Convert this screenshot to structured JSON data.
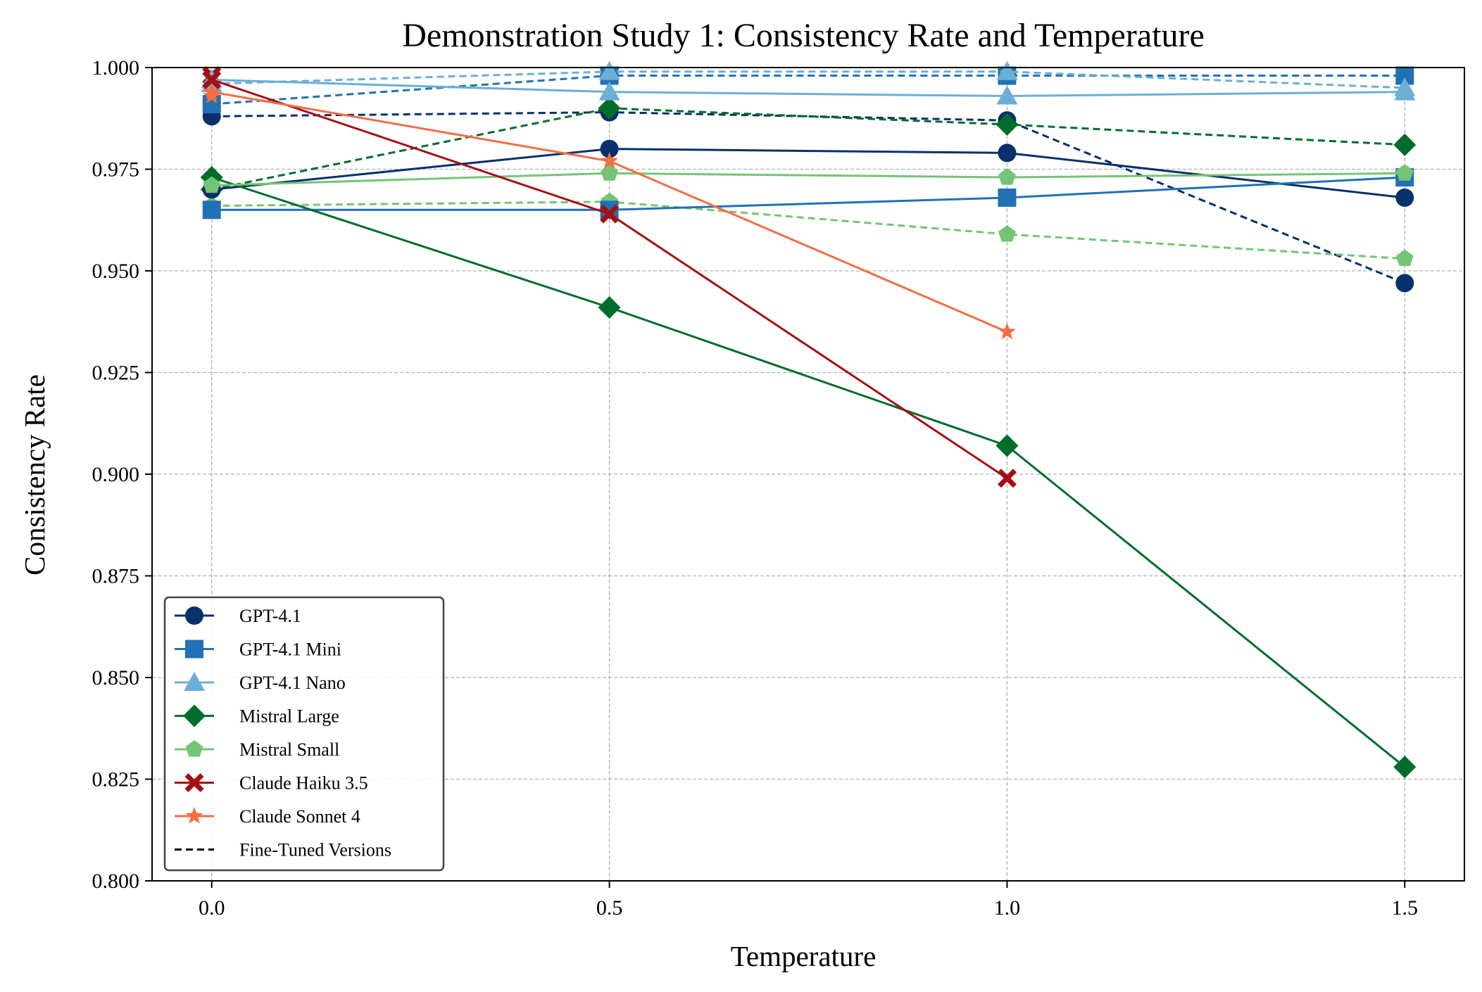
{
  "chart_data": {
    "type": "line",
    "title": "Demonstration Study 1: Consistency Rate and Temperature",
    "xlabel": "Temperature",
    "ylabel": "Consistency Rate",
    "x": [
      0.0,
      0.5,
      1.0,
      1.5
    ],
    "x_tick_labels": [
      "0.0",
      "0.5",
      "1.0",
      "1.5"
    ],
    "xlim": [
      -0.075,
      1.575
    ],
    "ylim": [
      0.8,
      1.0
    ],
    "y_ticks": [
      0.8,
      0.825,
      0.85,
      0.875,
      0.9,
      0.925,
      0.95,
      0.975,
      1.0
    ],
    "y_tick_labels": [
      "0.800",
      "0.825",
      "0.850",
      "0.875",
      "0.900",
      "0.925",
      "0.950",
      "0.975",
      "1.000"
    ],
    "grid": true,
    "legend_position": "lower-left",
    "series": [
      {
        "name": "GPT-4.1",
        "color": "#08306b",
        "marker": "circle",
        "dashed": false,
        "values": [
          0.97,
          0.98,
          0.979,
          0.968
        ]
      },
      {
        "name": "GPT-4.1 Mini",
        "color": "#2171b5",
        "marker": "square",
        "dashed": false,
        "values": [
          0.965,
          0.965,
          0.968,
          0.973
        ]
      },
      {
        "name": "GPT-4.1 Nano",
        "color": "#6baed6",
        "marker": "triangle",
        "dashed": false,
        "values": [
          0.997,
          0.994,
          0.993,
          0.994
        ]
      },
      {
        "name": "Mistral Large",
        "color": "#006d2c",
        "marker": "diamond",
        "dashed": false,
        "values": [
          0.973,
          0.941,
          0.907,
          0.828
        ]
      },
      {
        "name": "Mistral Small",
        "color": "#74c476",
        "marker": "pentagon",
        "dashed": false,
        "values": [
          0.971,
          0.974,
          0.973,
          0.974
        ]
      },
      {
        "name": "Claude Haiku 3.5",
        "color": "#a50f15",
        "marker": "x",
        "dashed": false,
        "values": [
          0.997,
          0.964,
          0.899,
          null
        ]
      },
      {
        "name": "Claude Sonnet 4",
        "color": "#f46d43",
        "marker": "star",
        "dashed": false,
        "values": [
          0.994,
          0.977,
          0.935,
          null
        ]
      },
      {
        "name": "",
        "color": "#08306b",
        "marker": "circle",
        "dashed": true,
        "values": [
          0.988,
          0.989,
          0.987,
          0.947
        ]
      },
      {
        "name": "",
        "color": "#2171b5",
        "marker": "square",
        "dashed": true,
        "values": [
          0.991,
          0.998,
          0.998,
          0.998
        ]
      },
      {
        "name": "",
        "color": "#6baed6",
        "marker": "triangle",
        "dashed": true,
        "values": [
          0.996,
          0.999,
          0.999,
          0.995
        ]
      },
      {
        "name": "",
        "color": "#006d2c",
        "marker": "diamond",
        "dashed": true,
        "values": [
          0.97,
          0.99,
          0.986,
          0.981
        ]
      },
      {
        "name": "",
        "color": "#74c476",
        "marker": "pentagon",
        "dashed": true,
        "values": [
          0.966,
          0.967,
          0.959,
          0.953
        ]
      },
      {
        "name": "",
        "color": "#a50f15",
        "marker": "x",
        "dashed": true,
        "values": [
          0.998,
          null,
          null,
          null
        ]
      },
      {
        "name": "",
        "color": "#f46d43",
        "marker": "star",
        "dashed": true,
        "values": [
          0.993,
          null,
          null,
          null
        ]
      }
    ],
    "legend": [
      {
        "label": "GPT-4.1",
        "color": "#08306b",
        "marker": "circle",
        "dashed": false
      },
      {
        "label": "GPT-4.1 Mini",
        "color": "#2171b5",
        "marker": "square",
        "dashed": false
      },
      {
        "label": "GPT-4.1 Nano",
        "color": "#6baed6",
        "marker": "triangle",
        "dashed": false
      },
      {
        "label": "Mistral Large",
        "color": "#006d2c",
        "marker": "diamond",
        "dashed": false
      },
      {
        "label": "Mistral Small",
        "color": "#74c476",
        "marker": "pentagon",
        "dashed": false
      },
      {
        "label": "Claude Haiku 3.5",
        "color": "#a50f15",
        "marker": "x",
        "dashed": false
      },
      {
        "label": "Claude Sonnet 4",
        "color": "#f46d43",
        "marker": "star",
        "dashed": false
      },
      {
        "label": "Fine-Tuned Versions",
        "color": "#000000",
        "marker": "none",
        "dashed": true
      }
    ]
  }
}
